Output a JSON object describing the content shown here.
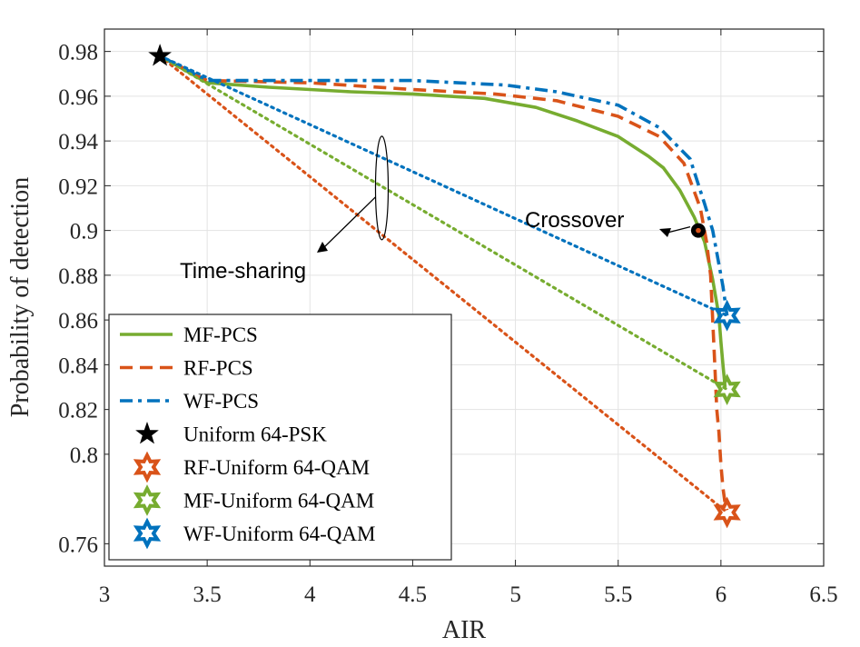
{
  "chart_data": {
    "type": "line",
    "title": "",
    "xlabel": "AIR",
    "ylabel": "Probability of detection",
    "xlim": [
      3,
      6.5
    ],
    "ylim": [
      0.75,
      0.99
    ],
    "xticks": [
      3,
      3.5,
      4,
      4.5,
      5,
      5.5,
      6,
      6.5
    ],
    "xtick_labels": [
      "3",
      "3.5",
      "4",
      "4.5",
      "5",
      "5.5",
      "6",
      "6.5"
    ],
    "yticks": [
      0.76,
      0.8,
      0.82,
      0.84,
      0.86,
      0.88,
      0.9,
      0.92,
      0.94,
      0.96,
      0.98
    ],
    "ytick_labels": [
      "0.76",
      "0.8",
      "0.82",
      "0.84",
      "0.86",
      "0.88",
      "0.9",
      "0.92",
      "0.94",
      "0.96",
      "0.98"
    ],
    "grid": true,
    "legend_position": "bottom-left",
    "series": [
      {
        "name": "MF-PCS",
        "color": "#77AC30",
        "style": "solid",
        "x": [
          3.27,
          3.5,
          3.8,
          4.2,
          4.5,
          4.85,
          5.1,
          5.3,
          5.5,
          5.65,
          5.72,
          5.8,
          5.87,
          5.92,
          5.96,
          5.99,
          6.0,
          6.01,
          6.02
        ],
        "y": [
          0.978,
          0.966,
          0.964,
          0.962,
          0.961,
          0.959,
          0.955,
          0.949,
          0.942,
          0.933,
          0.928,
          0.918,
          0.906,
          0.895,
          0.878,
          0.862,
          0.85,
          0.84,
          0.83
        ]
      },
      {
        "name": "RF-PCS",
        "color": "#D95319",
        "style": "dashed",
        "x": [
          3.27,
          3.5,
          4.0,
          4.5,
          4.9,
          5.2,
          5.5,
          5.7,
          5.82,
          5.9,
          5.93,
          5.95,
          5.96,
          5.97,
          5.98,
          5.99,
          6.0,
          6.01,
          6.02,
          6.03
        ],
        "y": [
          0.978,
          0.967,
          0.966,
          0.963,
          0.961,
          0.958,
          0.951,
          0.942,
          0.93,
          0.91,
          0.895,
          0.88,
          0.86,
          0.84,
          0.82,
          0.81,
          0.795,
          0.785,
          0.778,
          0.775
        ]
      },
      {
        "name": "WF-PCS",
        "color": "#0072BD",
        "style": "dashdot",
        "x": [
          3.27,
          3.5,
          4.0,
          4.5,
          4.95,
          5.2,
          5.5,
          5.7,
          5.85,
          5.92,
          5.96,
          5.99,
          6.01,
          6.03
        ],
        "y": [
          0.978,
          0.967,
          0.967,
          0.967,
          0.965,
          0.962,
          0.956,
          0.946,
          0.932,
          0.912,
          0.9,
          0.885,
          0.875,
          0.862
        ]
      },
      {
        "name": "Time-sharing RF",
        "color": "#D95319",
        "style": "dotted",
        "x": [
          3.27,
          6.03
        ],
        "y": [
          0.978,
          0.774
        ]
      },
      {
        "name": "Time-sharing MF",
        "color": "#77AC30",
        "style": "dotted",
        "x": [
          3.27,
          6.03
        ],
        "y": [
          0.978,
          0.829
        ]
      },
      {
        "name": "Time-sharing WF",
        "color": "#0072BD",
        "style": "dotted",
        "x": [
          3.27,
          6.03
        ],
        "y": [
          0.978,
          0.862
        ]
      }
    ],
    "markers": [
      {
        "name": "Uniform 64-PSK",
        "color": "#000000",
        "shape": "pentagram",
        "x": 3.27,
        "y": 0.978
      },
      {
        "name": "RF-Uniform 64-QAM",
        "color": "#D95319",
        "shape": "hexagram",
        "x": 6.03,
        "y": 0.774
      },
      {
        "name": "MF-Uniform 64-QAM",
        "color": "#77AC30",
        "shape": "hexagram",
        "x": 6.03,
        "y": 0.829
      },
      {
        "name": "WF-Uniform 64-QAM",
        "color": "#0072BD",
        "shape": "hexagram",
        "x": 6.03,
        "y": 0.862
      }
    ],
    "legend": [
      {
        "label": "MF-PCS",
        "color": "#77AC30",
        "kind": "line",
        "style": "solid"
      },
      {
        "label": "RF-PCS",
        "color": "#D95319",
        "kind": "line",
        "style": "dashed"
      },
      {
        "label": "WF-PCS",
        "color": "#0072BD",
        "kind": "line",
        "style": "dashdot"
      },
      {
        "label": "Uniform 64-PSK",
        "color": "#000000",
        "kind": "marker",
        "shape": "pentagram"
      },
      {
        "label": "RF-Uniform 64-QAM",
        "color": "#D95319",
        "kind": "marker",
        "shape": "hexagram"
      },
      {
        "label": "MF-Uniform 64-QAM",
        "color": "#77AC30",
        "kind": "marker",
        "shape": "hexagram"
      },
      {
        "label": "WF-Uniform 64-QAM",
        "color": "#0072BD",
        "kind": "marker",
        "shape": "hexagram"
      }
    ],
    "annotations": [
      {
        "text": "Crossover",
        "point": {
          "x": 5.89,
          "y": 0.9
        }
      },
      {
        "text": "Time-sharing",
        "point": {
          "x": 4.35,
          "y": 0.919
        }
      }
    ]
  }
}
